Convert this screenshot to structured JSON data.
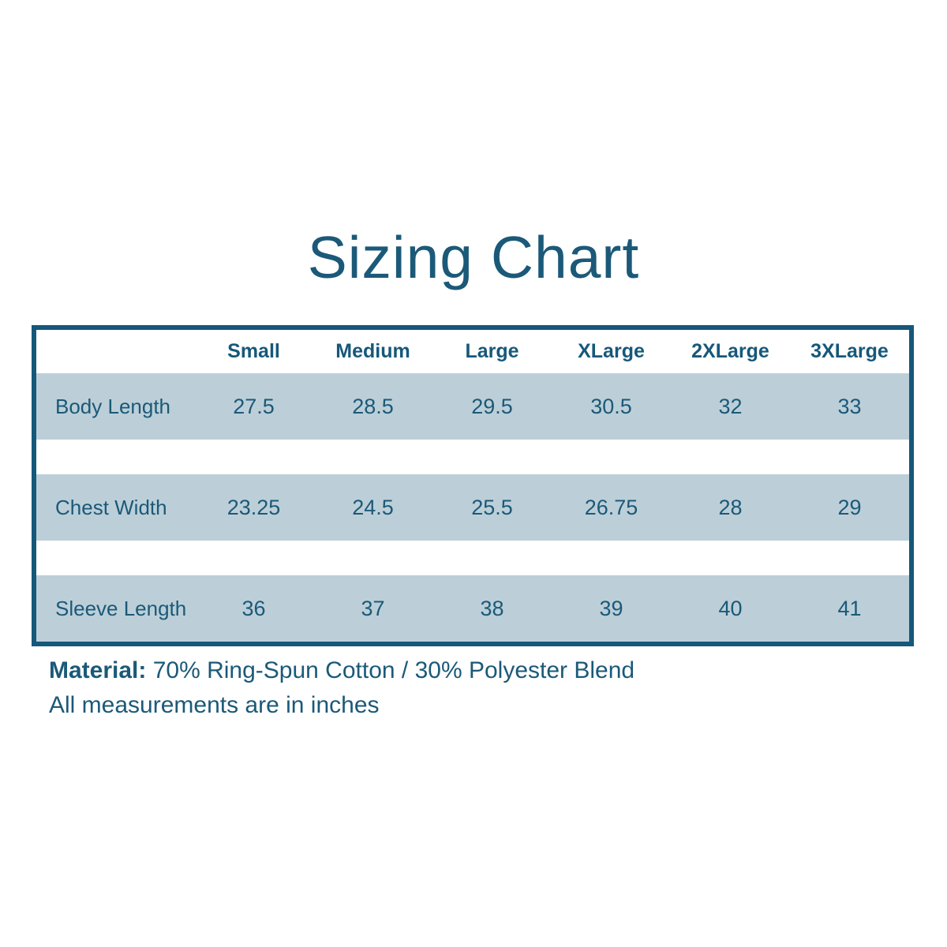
{
  "title": "Sizing Chart",
  "table": {
    "columns": [
      "Small",
      "Medium",
      "Large",
      "XLarge",
      "2XLarge",
      "3XLarge"
    ],
    "rows": [
      {
        "label": "Body Length",
        "values": [
          "27.5",
          "28.5",
          "29.5",
          "30.5",
          "32",
          "33"
        ]
      },
      {
        "label": "Chest Width",
        "values": [
          "23.25",
          "24.5",
          "25.5",
          "26.75",
          "28",
          "29"
        ]
      },
      {
        "label": "Sleeve Length",
        "values": [
          "36",
          "37",
          "38",
          "39",
          "40",
          "41"
        ]
      }
    ]
  },
  "footer": {
    "material_label": "Material:",
    "material_value": "70% Ring-Spun Cotton / 30% Polyester Blend",
    "note": "All measurements are in inches"
  },
  "colors": {
    "text_teal": "#1b5978",
    "border_teal": "#16587a",
    "row_band": "#bccfd8",
    "background": "#ffffff"
  },
  "chart_data": {
    "type": "table",
    "title": "Sizing Chart",
    "columns": [
      "",
      "Small",
      "Medium",
      "Large",
      "XLarge",
      "2XLarge",
      "3XLarge"
    ],
    "rows": [
      [
        "Body Length",
        27.5,
        28.5,
        29.5,
        30.5,
        32,
        33
      ],
      [
        "Chest Width",
        23.25,
        24.5,
        25.5,
        26.75,
        28,
        29
      ],
      [
        "Sleeve Length",
        36,
        37,
        38,
        39,
        40,
        41
      ]
    ],
    "units": "inches",
    "notes": [
      "Material: 70% Ring-Spun Cotton / 30% Polyester Blend",
      "All measurements are in inches"
    ]
  }
}
